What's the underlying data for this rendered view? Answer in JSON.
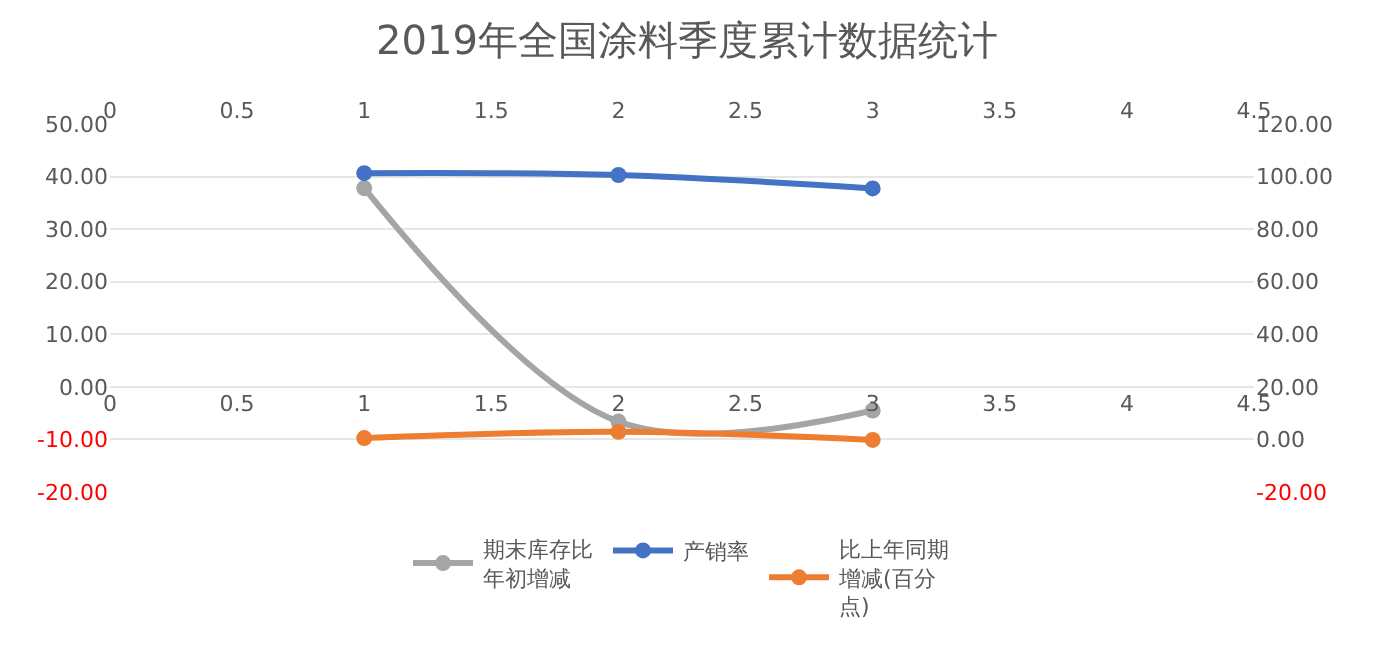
{
  "chart_data": {
    "type": "line",
    "title": "2019年全国涂料季度累计数据统计",
    "x": [
      1,
      2,
      3
    ],
    "series": [
      {
        "name": "期末库存比年初增减",
        "color": "#a5a5a5",
        "values": [
          37.8,
          -6.6,
          -4.5
        ]
      },
      {
        "name": "产销率",
        "color": "#4472c4",
        "values": [
          101.3,
          100.6,
          95.5
        ],
        "axis": "y2"
      },
      {
        "name": "比上年同期增减(百分点)",
        "color": "#ed7d31",
        "values": [
          0.5,
          2.9,
          -0.2
        ],
        "axis": "y2"
      }
    ],
    "xlim": [
      0,
      4.5
    ],
    "xticks": [
      0,
      0.5,
      1,
      1.5,
      2,
      2.5,
      3,
      3.5,
      4,
      4.5
    ],
    "x2lim": [
      0,
      4.5
    ],
    "x2ticks": [
      0,
      0.5,
      1,
      1.5,
      2,
      2.5,
      3,
      3.5,
      4,
      4.5
    ],
    "ylim": [
      -20,
      50
    ],
    "yticks": [
      {
        "value": -20,
        "label": "-20.00"
      },
      {
        "value": -10,
        "label": "-10.00"
      },
      {
        "value": 0,
        "label": "0.00"
      },
      {
        "value": 10,
        "label": "10.00"
      },
      {
        "value": 20,
        "label": "20.00"
      },
      {
        "value": 30,
        "label": "30.00"
      },
      {
        "value": 40,
        "label": "40.00"
      },
      {
        "value": 50,
        "label": "50.00"
      }
    ],
    "y2lim": [
      -20,
      120
    ],
    "y2ticks": [
      {
        "value": -20,
        "label": "-20.00"
      },
      {
        "value": 0,
        "label": "0.00"
      },
      {
        "value": 20,
        "label": "20.00"
      },
      {
        "value": 40,
        "label": "40.00"
      },
      {
        "value": 60,
        "label": "60.00"
      },
      {
        "value": 80,
        "label": "80.00"
      },
      {
        "value": 100,
        "label": "100.00"
      },
      {
        "value": 120,
        "label": "120.00"
      }
    ],
    "grid": "y",
    "legend": "bottom",
    "marker": "circle",
    "line_style": "solid"
  }
}
